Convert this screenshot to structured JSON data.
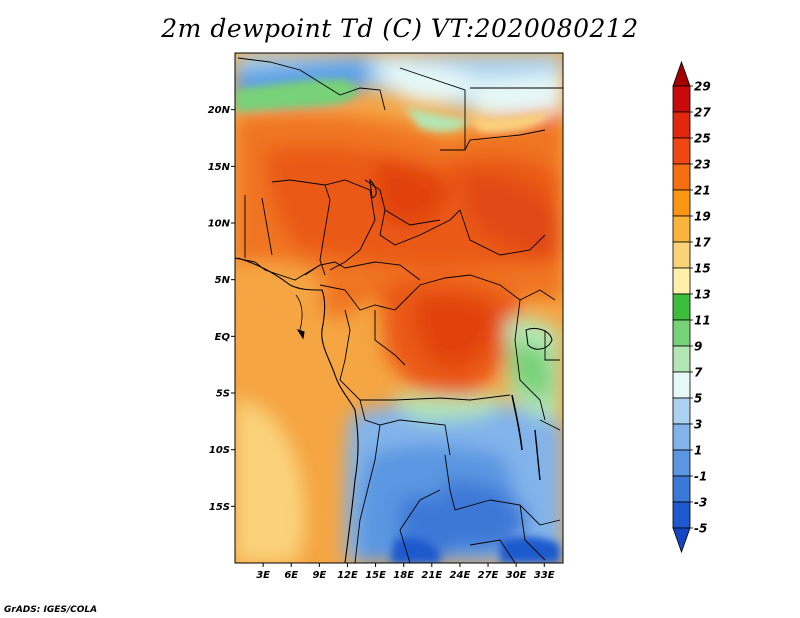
{
  "title": "2m dewpoint Td (C) VT:2020080212",
  "credit": "GrADS: IGES/COLA",
  "map": {
    "lat_range": [
      -20,
      25
    ],
    "lon_range": [
      0,
      35
    ],
    "lat_ticks": [
      {
        "value": 20,
        "label": "20N"
      },
      {
        "value": 15,
        "label": "15N"
      },
      {
        "value": 10,
        "label": "10N"
      },
      {
        "value": 5,
        "label": "5N"
      },
      {
        "value": 0,
        "label": "EQ"
      },
      {
        "value": -5,
        "label": "5S"
      },
      {
        "value": -10,
        "label": "10S"
      },
      {
        "value": -15,
        "label": "15S"
      }
    ],
    "lon_ticks": [
      {
        "value": 3,
        "label": "3E"
      },
      {
        "value": 6,
        "label": "6E"
      },
      {
        "value": 9,
        "label": "9E"
      },
      {
        "value": 12,
        "label": "12E"
      },
      {
        "value": 15,
        "label": "15E"
      },
      {
        "value": 18,
        "label": "18E"
      },
      {
        "value": 21,
        "label": "21E"
      },
      {
        "value": 24,
        "label": "24E"
      },
      {
        "value": 27,
        "label": "27E"
      },
      {
        "value": 30,
        "label": "30E"
      },
      {
        "value": 33,
        "label": "33E"
      }
    ]
  },
  "colorbar": {
    "labels": [
      "29",
      "27",
      "25",
      "23",
      "21",
      "19",
      "17",
      "15",
      "13",
      "11",
      "9",
      "7",
      "5",
      "3",
      "1",
      "-1",
      "-3",
      "-5"
    ],
    "colors": [
      "#a50000",
      "#c80a0a",
      "#e1280f",
      "#f04614",
      "#f56e0f",
      "#fa9614",
      "#fab43c",
      "#fad278",
      "#fff0aa",
      "#3cbe3c",
      "#78d278",
      "#b4e6b4",
      "#e6f8f8",
      "#aad2f0",
      "#82b4eb",
      "#5a96e1",
      "#3c78d7",
      "#1e5acd",
      "#1446c3"
    ]
  }
}
